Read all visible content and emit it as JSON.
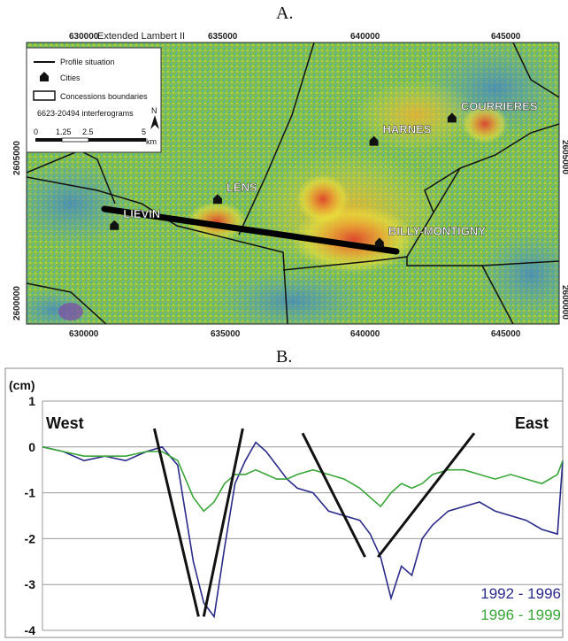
{
  "panels": {
    "a": "A.",
    "b": "B."
  },
  "map": {
    "projection": "Extended Lambert II",
    "x_ticks_top": [
      "630000",
      "635000",
      "640000",
      "645000"
    ],
    "x_ticks_bottom": [
      "630000",
      "635000",
      "640000",
      "645000"
    ],
    "y_ticks": [
      "2605000",
      "2600000"
    ],
    "right_ticks": [
      "2605000",
      "2600000"
    ],
    "cities": [
      {
        "name": "LIEVIN",
        "x": 631500,
        "y": 2603300
      },
      {
        "name": "LENS",
        "x": 635200,
        "y": 2604200
      },
      {
        "name": "HARNES",
        "x": 640800,
        "y": 2606200
      },
      {
        "name": "COURRIERES",
        "x": 643600,
        "y": 2607000
      },
      {
        "name": "BILLY-MONTIGNY",
        "x": 641000,
        "y": 2602700
      }
    ],
    "legend": {
      "items": [
        "Profile situation",
        "Cities",
        "Concessions boundaries",
        "6623-20494 interferograms"
      ],
      "scale_labels": [
        "0",
        "1.25",
        "2.5",
        "5"
      ],
      "scale_unit": "km",
      "north": "N"
    },
    "profile": {
      "from": [
        630800,
        2603700
      ],
      "to": [
        640800,
        2602000
      ]
    },
    "colors": {
      "green": "#7fc24a",
      "yellow": "#f2e23a",
      "red": "#e23a2a",
      "blue": "#4a9fd8",
      "purple": "#7d4aa8"
    }
  },
  "chart_data": {
    "type": "line",
    "ylabel": "(cm)",
    "ylim": [
      -4,
      1
    ],
    "yticks": [
      1,
      0,
      -1,
      -2,
      -3,
      -4
    ],
    "annotations": {
      "west": "West",
      "east": "East"
    },
    "x": [
      0,
      0.04,
      0.08,
      0.12,
      0.16,
      0.2,
      0.23,
      0.26,
      0.29,
      0.31,
      0.33,
      0.35,
      0.37,
      0.39,
      0.41,
      0.43,
      0.45,
      0.47,
      0.49,
      0.52,
      0.55,
      0.58,
      0.61,
      0.63,
      0.65,
      0.67,
      0.69,
      0.71,
      0.73,
      0.75,
      0.78,
      0.81,
      0.84,
      0.87,
      0.9,
      0.93,
      0.96,
      0.99,
      1
    ],
    "series": [
      {
        "name": "1992 - 1996",
        "color": "#2a2a8a",
        "values": [
          0,
          -0.1,
          -0.3,
          -0.2,
          -0.3,
          -0.1,
          0,
          -0.4,
          -2.5,
          -3.4,
          -3.7,
          -2.2,
          -0.8,
          -0.3,
          0.1,
          -0.1,
          -0.4,
          -0.7,
          -0.9,
          -1.0,
          -1.4,
          -1.5,
          -1.6,
          -1.9,
          -2.4,
          -3.3,
          -2.6,
          -2.8,
          -2.0,
          -1.7,
          -1.4,
          -1.3,
          -1.2,
          -1.4,
          -1.5,
          -1.6,
          -1.8,
          -1.9,
          -0.3
        ]
      },
      {
        "name": "1996 - 1999",
        "color": "#3aa53a",
        "values": [
          0,
          -0.1,
          -0.2,
          -0.2,
          -0.2,
          -0.1,
          -0.1,
          -0.3,
          -1.1,
          -1.4,
          -1.2,
          -0.8,
          -0.6,
          -0.6,
          -0.5,
          -0.6,
          -0.7,
          -0.7,
          -0.6,
          -0.5,
          -0.6,
          -0.7,
          -0.9,
          -1.1,
          -1.3,
          -1.0,
          -0.8,
          -0.9,
          -0.8,
          -0.6,
          -0.5,
          -0.5,
          -0.6,
          -0.7,
          -0.6,
          -0.7,
          -0.8,
          -0.6,
          -0.3
        ]
      }
    ],
    "trend_lines": [
      {
        "x": [
          0.215,
          0.3
        ],
        "y": [
          0.4,
          -3.7
        ]
      },
      {
        "x": [
          0.31,
          0.385
        ],
        "y": [
          -3.7,
          0.4
        ]
      },
      {
        "x": [
          0.5,
          0.62
        ],
        "y": [
          0.3,
          -2.4
        ]
      },
      {
        "x": [
          0.645,
          0.83
        ],
        "y": [
          -2.4,
          0.3
        ]
      }
    ]
  }
}
